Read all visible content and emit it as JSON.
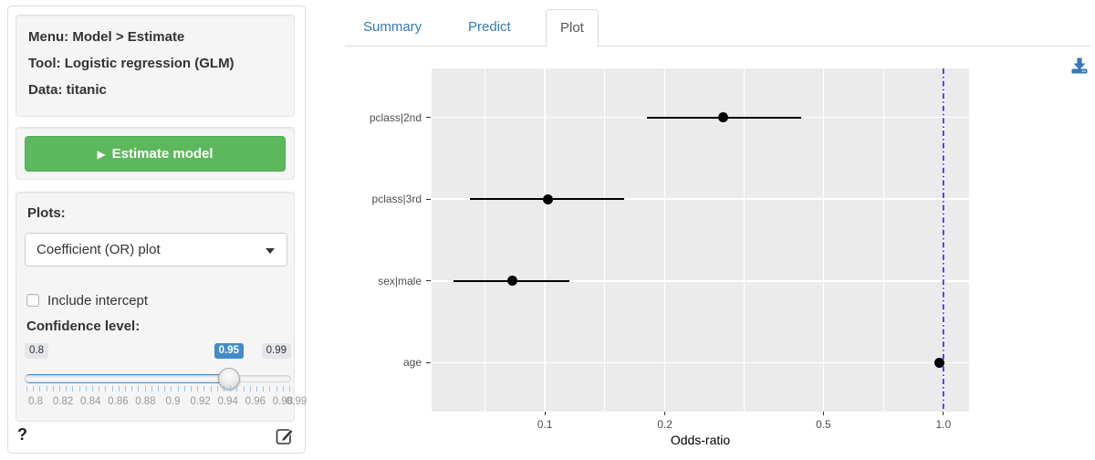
{
  "sidebar": {
    "info": {
      "menu": "Menu: Model > Estimate",
      "tool": "Tool: Logistic regression (GLM)",
      "data": "Data: titanic"
    },
    "estimate_button": "Estimate model",
    "play_icon_glyph": "▶",
    "plots_label": "Plots:",
    "plots_select_value": "Coefficient (OR) plot",
    "include_intercept_label": "Include intercept",
    "include_intercept_checked": false,
    "confidence_label": "Confidence level:",
    "slider": {
      "min": 0.8,
      "max": 0.99,
      "value": 0.95,
      "min_label": "0.8",
      "value_label": "0.95",
      "max_label": "0.99",
      "grid_labels": [
        "0.8",
        "0.82",
        "0.84",
        "0.86",
        "0.88",
        "0.9",
        "0.92",
        "0.94",
        "0.96",
        "0.98",
        "0.99"
      ],
      "grid_values": [
        0.8,
        0.82,
        0.84,
        0.86,
        0.88,
        0.9,
        0.92,
        0.94,
        0.96,
        0.98,
        0.99
      ]
    },
    "help_label": "?"
  },
  "tabs": [
    {
      "label": "Summary",
      "active": false
    },
    {
      "label": "Predict",
      "active": false
    },
    {
      "label": "Plot",
      "active": true
    }
  ],
  "icons": {
    "download": "download-icon",
    "edit": "edit-icon",
    "help": "help-icon",
    "play": "play-icon",
    "caret": "caret-down-icon",
    "slider_handle": "slider-handle"
  },
  "colors": {
    "link_blue": "#337ab7",
    "slider_blue": "#428bca",
    "button_green": "#5cb85c",
    "panel_gray": "#ebebeb",
    "vline_blue": "#2b2bf2",
    "axis_text": "#4d4d4d"
  },
  "chart_data": {
    "type": "scatter",
    "subtype": "coefficient-odds-ratio-plot",
    "xlabel": "Odds-ratio",
    "x_scale": "log10",
    "x_domain": [
      0.052,
      1.16
    ],
    "x_ticks": [
      {
        "v": 0.1,
        "label": "0.1"
      },
      {
        "v": 0.2,
        "label": "0.2"
      },
      {
        "v": 0.5,
        "label": "0.5"
      },
      {
        "v": 1.0,
        "label": "1.0"
      }
    ],
    "x_minor": [
      0.0707,
      0.1414,
      0.3162,
      0.7071
    ],
    "vline": {
      "x": 1.0,
      "style": "dotdash",
      "color": "blue"
    },
    "categories": [
      "pclass|2nd",
      "pclass|3rd",
      "sex|male",
      "age"
    ],
    "points": [
      {
        "label": "pclass|2nd",
        "or": 0.28,
        "ci_low": 0.18,
        "ci_high": 0.44
      },
      {
        "label": "pclass|3rd",
        "or": 0.102,
        "ci_low": 0.065,
        "ci_high": 0.158
      },
      {
        "label": "sex|male",
        "or": 0.083,
        "ci_low": 0.059,
        "ci_high": 0.115
      },
      {
        "label": "age",
        "or": 0.975,
        "ci_low": 0.965,
        "ci_high": 0.985
      }
    ],
    "confidence_level": 0.95,
    "legend": "none",
    "grid": true
  }
}
